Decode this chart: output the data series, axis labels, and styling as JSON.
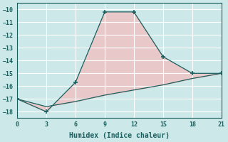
{
  "xlabel": "Humidex (Indice chaleur)",
  "line1_x": [
    0,
    3,
    6,
    9,
    12,
    15,
    18,
    21
  ],
  "line1_y": [
    -17,
    -18,
    -15.7,
    -10.2,
    -10.2,
    -13.7,
    -15,
    -15
  ],
  "line2_x": [
    0,
    3,
    6,
    9,
    12,
    15,
    18,
    21
  ],
  "line2_y": [
    -17,
    -17.6,
    -17.2,
    -16.7,
    -16.3,
    -15.9,
    -15.4,
    -15
  ],
  "line_color": "#1a5f5f",
  "fill_color": "#e8c8c8",
  "bg_color": "#cce8e8",
  "grid_color": "#ffffff",
  "xlim": [
    0,
    21
  ],
  "ylim": [
    -18.5,
    -9.5
  ],
  "xticks": [
    0,
    3,
    6,
    9,
    12,
    15,
    18,
    21
  ],
  "yticks": [
    -10,
    -11,
    -12,
    -13,
    -14,
    -15,
    -16,
    -17,
    -18
  ],
  "marker": "+"
}
